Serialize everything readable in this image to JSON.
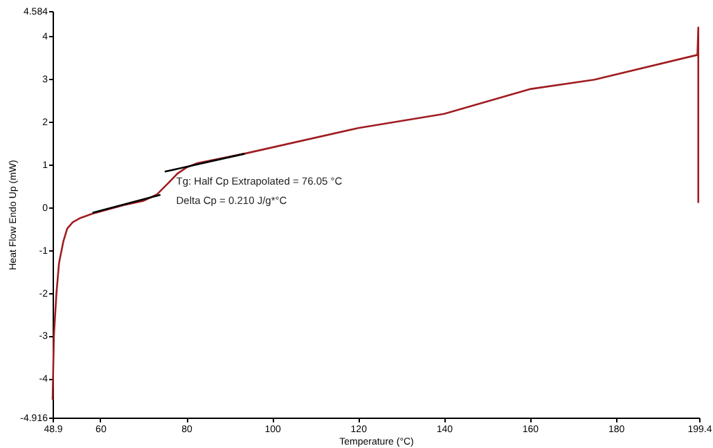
{
  "chart_data": {
    "type": "line",
    "xlabel": "Temperature (°C)",
    "ylabel": "Heat Flow Endo Up (mW)",
    "xlim": [
      48.9,
      199.4
    ],
    "xticks": [
      48.9,
      60,
      80,
      100,
      120,
      140,
      160,
      180,
      199.4
    ],
    "ylim": [
      -4.916,
      4.584
    ],
    "yticks": [
      -4.916,
      -4,
      -3,
      -2,
      -1,
      0,
      1,
      2,
      3,
      4,
      4.584
    ],
    "grid": false,
    "line_style": "solid",
    "marker": "none",
    "series": [
      {
        "color": "#a01c20",
        "x": [
          48.9,
          49.2,
          49.8,
          50.4,
          51.4,
          52.3,
          53.6,
          55.4,
          58.2,
          60.7,
          65.4,
          70.1,
          73.2,
          75.7,
          77.9,
          80.1,
          82.6,
          93.5,
          120,
          140,
          160,
          175,
          199.0,
          199.2,
          199.2
        ],
        "values": [
          -4.5,
          -3.0,
          -2.0,
          -1.3,
          -0.8,
          -0.5,
          -0.35,
          -0.25,
          -0.15,
          -0.08,
          0.05,
          0.15,
          0.3,
          0.55,
          0.78,
          0.93,
          1.03,
          1.25,
          1.85,
          2.18,
          2.76,
          2.98,
          3.56,
          4.2,
          0.1
        ]
      },
      {
        "color": "#000000",
        "x": [
          58.2,
          74.0
        ],
        "values": [
          -0.13,
          0.29
        ]
      },
      {
        "color": "#000000",
        "x": [
          75.0,
          93.6
        ],
        "values": [
          0.83,
          1.25
        ]
      }
    ],
    "annotations": [
      {
        "text": "Tg: Half Cp Extrapolated = 76.05 °C",
        "x": 76.05,
        "y": 0.6
      },
      "Delta Cp = 0.210 J/g*°C"
    ]
  }
}
